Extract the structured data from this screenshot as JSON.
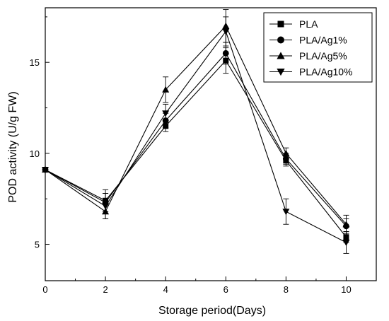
{
  "chart_data": {
    "type": "line",
    "title": "",
    "xlabel": "Storage period(Days)",
    "ylabel": "POD activity (U/g FW)",
    "xlim": [
      0,
      11
    ],
    "ylim": [
      3,
      18
    ],
    "xticks": [
      0,
      2,
      4,
      6,
      8,
      10
    ],
    "yticks": [
      5,
      10,
      15
    ],
    "grid": false,
    "legend_position": "top-right",
    "x": [
      0,
      2,
      4,
      6,
      8,
      10
    ],
    "series": [
      {
        "name": "PLA",
        "marker": "square",
        "values": [
          9.1,
          7.4,
          11.5,
          15.1,
          9.6,
          5.4
        ],
        "errors": [
          0.1,
          0.6,
          0.3,
          0.7,
          0.3,
          0.3
        ]
      },
      {
        "name": "PLA/Ag1%",
        "marker": "circle",
        "values": [
          9.1,
          7.3,
          11.8,
          15.5,
          9.7,
          6.0
        ],
        "errors": [
          0.1,
          0.5,
          0.4,
          0.6,
          0.3,
          0.4
        ]
      },
      {
        "name": "PLA/Ag5%",
        "marker": "triangle-up",
        "values": [
          9.1,
          6.8,
          13.5,
          17.0,
          10.0,
          6.1
        ],
        "errors": [
          0.1,
          0.4,
          0.7,
          0.9,
          0.3,
          0.5
        ]
      },
      {
        "name": "PLA/Ag10%",
        "marker": "triangle-down",
        "values": [
          9.1,
          7.1,
          12.2,
          16.7,
          6.8,
          5.1
        ],
        "errors": [
          0.1,
          0.7,
          0.5,
          0.8,
          0.7,
          0.6
        ]
      }
    ]
  }
}
